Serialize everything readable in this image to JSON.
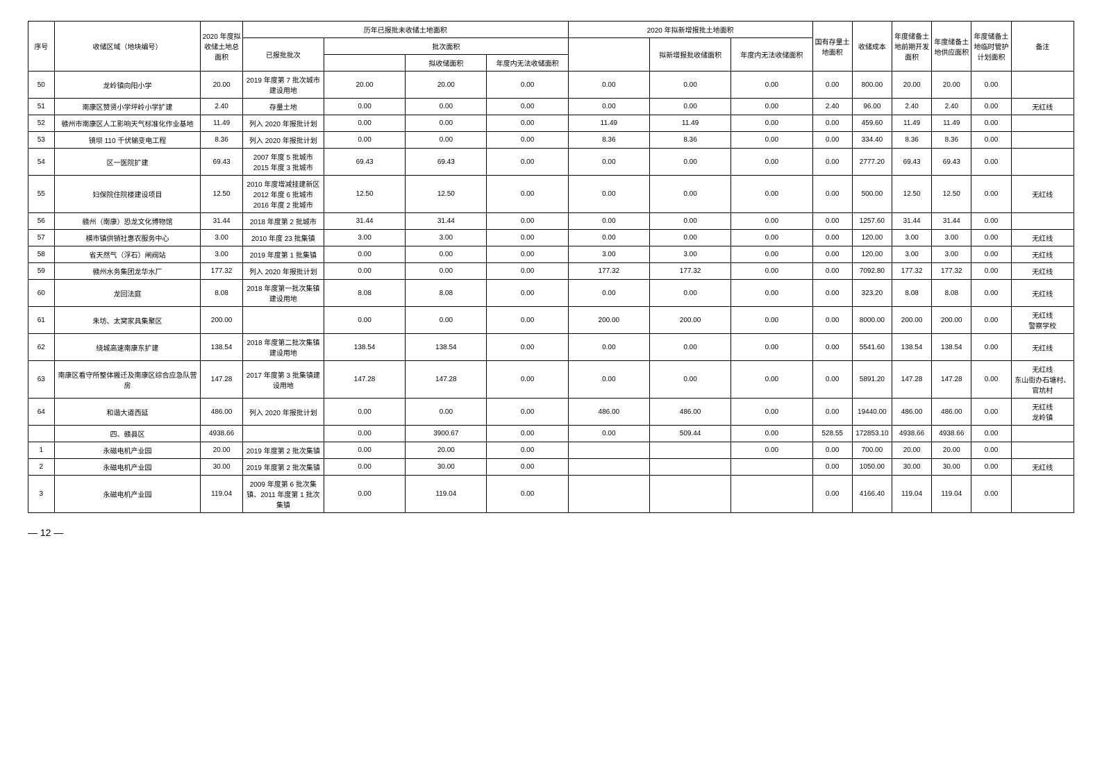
{
  "headers": {
    "seq": "序号",
    "area": "收储区域（地块编号）",
    "year2020": "2020 年度拟收储土地总面积",
    "historicGroup": "历年已报批未收储土地面积",
    "approvedBatch": "已报批批次",
    "batchAreaGroup": "批次面积",
    "batchStorage": "拟收储面积",
    "annualNotStorage": "年度内无法收储面积",
    "newApplyGroup": "2020 年拟新增报批土地面积",
    "newApplyStorage": "拟新增报批收储面积",
    "annualNotStorage2": "年度内无法收储面积",
    "existingStock": "国有存量土地面积",
    "storageCost": "收储成本",
    "annualDev": "年度储备土地前期开发面积",
    "annualSupply": "年度储备土地供应面积",
    "annualTemp": "年度储备土地临时管护计划面积",
    "note": "备注"
  },
  "rows": [
    {
      "seq": "50",
      "area": "龙岭镇向阳小学",
      "total": "20.00",
      "batch": "2019 年度第 7 批次城市建设用地",
      "c1": "20.00",
      "c2": "20.00",
      "c3": "0.00",
      "c4": "0.00",
      "c5": "0.00",
      "c6": "0.00",
      "c7": "0.00",
      "cost": "800.00",
      "dev": "20.00",
      "supply": "20.00",
      "temp": "0.00",
      "note": ""
    },
    {
      "seq": "51",
      "area": "南康区赞贤小学坪岭小学扩建",
      "total": "2.40",
      "batch": "存量土地",
      "c1": "0.00",
      "c2": "0.00",
      "c3": "0.00",
      "c4": "0.00",
      "c5": "0.00",
      "c6": "0.00",
      "c7": "2.40",
      "cost": "96.00",
      "dev": "2.40",
      "supply": "2.40",
      "temp": "0.00",
      "note": "无红线"
    },
    {
      "seq": "52",
      "area": "赣州市南康区人工影响天气标准化作业基地",
      "total": "11.49",
      "batch": "列入 2020 年报批计划",
      "c1": "0.00",
      "c2": "0.00",
      "c3": "0.00",
      "c4": "11.49",
      "c5": "11.49",
      "c6": "0.00",
      "c7": "0.00",
      "cost": "459.60",
      "dev": "11.49",
      "supply": "11.49",
      "temp": "0.00",
      "note": ""
    },
    {
      "seq": "53",
      "area": "镜坝 110 千伏输变电工程",
      "total": "8.36",
      "batch": "列入 2020 年报批计划",
      "c1": "0.00",
      "c2": "0.00",
      "c3": "0.00",
      "c4": "8.36",
      "c5": "8.36",
      "c6": "0.00",
      "c7": "0.00",
      "cost": "334.40",
      "dev": "8.36",
      "supply": "8.36",
      "temp": "0.00",
      "note": ""
    },
    {
      "seq": "54",
      "area": "区一医院扩建",
      "total": "69.43",
      "batch": "2007 年度 5 批城市\n2015 年度 3 批城市",
      "c1": "69.43",
      "c2": "69.43",
      "c3": "0.00",
      "c4": "0.00",
      "c5": "0.00",
      "c6": "0.00",
      "c7": "0.00",
      "cost": "2777.20",
      "dev": "69.43",
      "supply": "69.43",
      "temp": "0.00",
      "note": ""
    },
    {
      "seq": "55",
      "area": "妇保院住院楼建设项目",
      "total": "12.50",
      "batch": "2010 年度增减挂建新区\n2012 年度 6 批城市\n2016 年度 2 批城市",
      "c1": "12.50",
      "c2": "12.50",
      "c3": "0.00",
      "c4": "0.00",
      "c5": "0.00",
      "c6": "0.00",
      "c7": "0.00",
      "cost": "500.00",
      "dev": "12.50",
      "supply": "12.50",
      "temp": "0.00",
      "note": "无红线"
    },
    {
      "seq": "56",
      "area": "赣州（南康）恐龙文化博物馆",
      "total": "31.44",
      "batch": "2018 年度第 2 批城市",
      "c1": "31.44",
      "c2": "31.44",
      "c3": "0.00",
      "c4": "0.00",
      "c5": "0.00",
      "c6": "0.00",
      "c7": "0.00",
      "cost": "1257.60",
      "dev": "31.44",
      "supply": "31.44",
      "temp": "0.00",
      "note": ""
    },
    {
      "seq": "57",
      "area": "横市镇供销社惠农服务中心",
      "total": "3.00",
      "batch": "2010 年度 23 批集镇",
      "c1": "3.00",
      "c2": "3.00",
      "c3": "0.00",
      "c4": "0.00",
      "c5": "0.00",
      "c6": "0.00",
      "c7": "0.00",
      "cost": "120.00",
      "dev": "3.00",
      "supply": "3.00",
      "temp": "0.00",
      "note": "无红线"
    },
    {
      "seq": "58",
      "area": "省天然气（浮石）闸阀站",
      "total": "3.00",
      "batch": "2019 年度第 1 批集镇",
      "c1": "0.00",
      "c2": "0.00",
      "c3": "0.00",
      "c4": "3.00",
      "c5": "3.00",
      "c6": "0.00",
      "c7": "0.00",
      "cost": "120.00",
      "dev": "3.00",
      "supply": "3.00",
      "temp": "0.00",
      "note": "无红线"
    },
    {
      "seq": "59",
      "area": "赣州水务集团龙华水厂",
      "total": "177.32",
      "batch": "列入 2020 年报批计划",
      "c1": "0.00",
      "c2": "0.00",
      "c3": "0.00",
      "c4": "177.32",
      "c5": "177.32",
      "c6": "0.00",
      "c7": "0.00",
      "cost": "7092.80",
      "dev": "177.32",
      "supply": "177.32",
      "temp": "0.00",
      "note": "无红线"
    },
    {
      "seq": "60",
      "area": "龙回法庭",
      "total": "8.08",
      "batch": "2018 年度第一批次集镇建设用地",
      "c1": "8.08",
      "c2": "8.08",
      "c3": "0.00",
      "c4": "0.00",
      "c5": "0.00",
      "c6": "0.00",
      "c7": "0.00",
      "cost": "323.20",
      "dev": "8.08",
      "supply": "8.08",
      "temp": "0.00",
      "note": "无红线"
    },
    {
      "seq": "61",
      "area": "朱坊、太窝家具集聚区",
      "total": "200.00",
      "batch": "",
      "c1": "0.00",
      "c2": "0.00",
      "c3": "0.00",
      "c4": "200.00",
      "c5": "200.00",
      "c6": "0.00",
      "c7": "0.00",
      "cost": "8000.00",
      "dev": "200.00",
      "supply": "200.00",
      "temp": "0.00",
      "note": "无红线\n警察学校"
    },
    {
      "seq": "62",
      "area": "绕城高速南康东扩建",
      "total": "138.54",
      "batch": "2018 年度第二批次集镇建设用地",
      "c1": "138.54",
      "c2": "138.54",
      "c3": "0.00",
      "c4": "0.00",
      "c5": "0.00",
      "c6": "0.00",
      "c7": "0.00",
      "cost": "5541.60",
      "dev": "138.54",
      "supply": "138.54",
      "temp": "0.00",
      "note": "无红线"
    },
    {
      "seq": "63",
      "area": "南康区看守所整体搬迁及南康区综合应急队营房",
      "total": "147.28",
      "batch": "2017 年度第 3 批集镇建设用地",
      "c1": "147.28",
      "c2": "147.28",
      "c3": "0.00",
      "c4": "0.00",
      "c5": "0.00",
      "c6": "0.00",
      "c7": "0.00",
      "cost": "5891.20",
      "dev": "147.28",
      "supply": "147.28",
      "temp": "0.00",
      "note": "无红线\n东山街办石塘村、官坑村"
    },
    {
      "seq": "64",
      "area": "和谐大道西延",
      "total": "486.00",
      "batch": "列入 2020 年报批计划",
      "c1": "0.00",
      "c2": "0.00",
      "c3": "0.00",
      "c4": "486.00",
      "c5": "486.00",
      "c6": "0.00",
      "c7": "0.00",
      "cost": "19440.00",
      "dev": "486.00",
      "supply": "486.00",
      "temp": "0.00",
      "note": "无红线\n龙岭镇"
    },
    {
      "seq": "",
      "area": "四、赣县区",
      "total": "4938.66",
      "batch": "",
      "c1": "0.00",
      "c2": "3900.67",
      "c3": "0.00",
      "c4": "0.00",
      "c5": "509.44",
      "c6": "0.00",
      "c7": "528.55",
      "cost": "172853.10",
      "dev": "4938.66",
      "supply": "4938.66",
      "temp": "0.00",
      "note": ""
    },
    {
      "seq": "1",
      "area": "永磁电机产业园",
      "total": "20.00",
      "batch": "2019 年度第 2 批次集镇",
      "c1": "0.00",
      "c2": "20.00",
      "c3": "0.00",
      "c4": "",
      "c5": "",
      "c6": "0.00",
      "c7": "0.00",
      "cost": "700.00",
      "dev": "20.00",
      "supply": "20.00",
      "temp": "0.00",
      "note": ""
    },
    {
      "seq": "2",
      "area": "永磁电机产业园",
      "total": "30.00",
      "batch": "2019 年度第 2 批次集镇",
      "c1": "0.00",
      "c2": "30.00",
      "c3": "0.00",
      "c4": "",
      "c5": "",
      "c6": "",
      "c7": "0.00",
      "cost": "1050.00",
      "dev": "30.00",
      "supply": "30.00",
      "temp": "0.00",
      "note": "无红线"
    },
    {
      "seq": "3",
      "area": "永磁电机产业园",
      "total": "119.04",
      "batch": "2009 年度第 6 批次集镇、2011 年度第 1 批次集镇",
      "c1": "0.00",
      "c2": "119.04",
      "c3": "0.00",
      "c4": "",
      "c5": "",
      "c6": "",
      "c7": "0.00",
      "cost": "4166.40",
      "dev": "119.04",
      "supply": "119.04",
      "temp": "0.00",
      "note": ""
    }
  ],
  "footer": {
    "pageNum": "— 12 —"
  }
}
